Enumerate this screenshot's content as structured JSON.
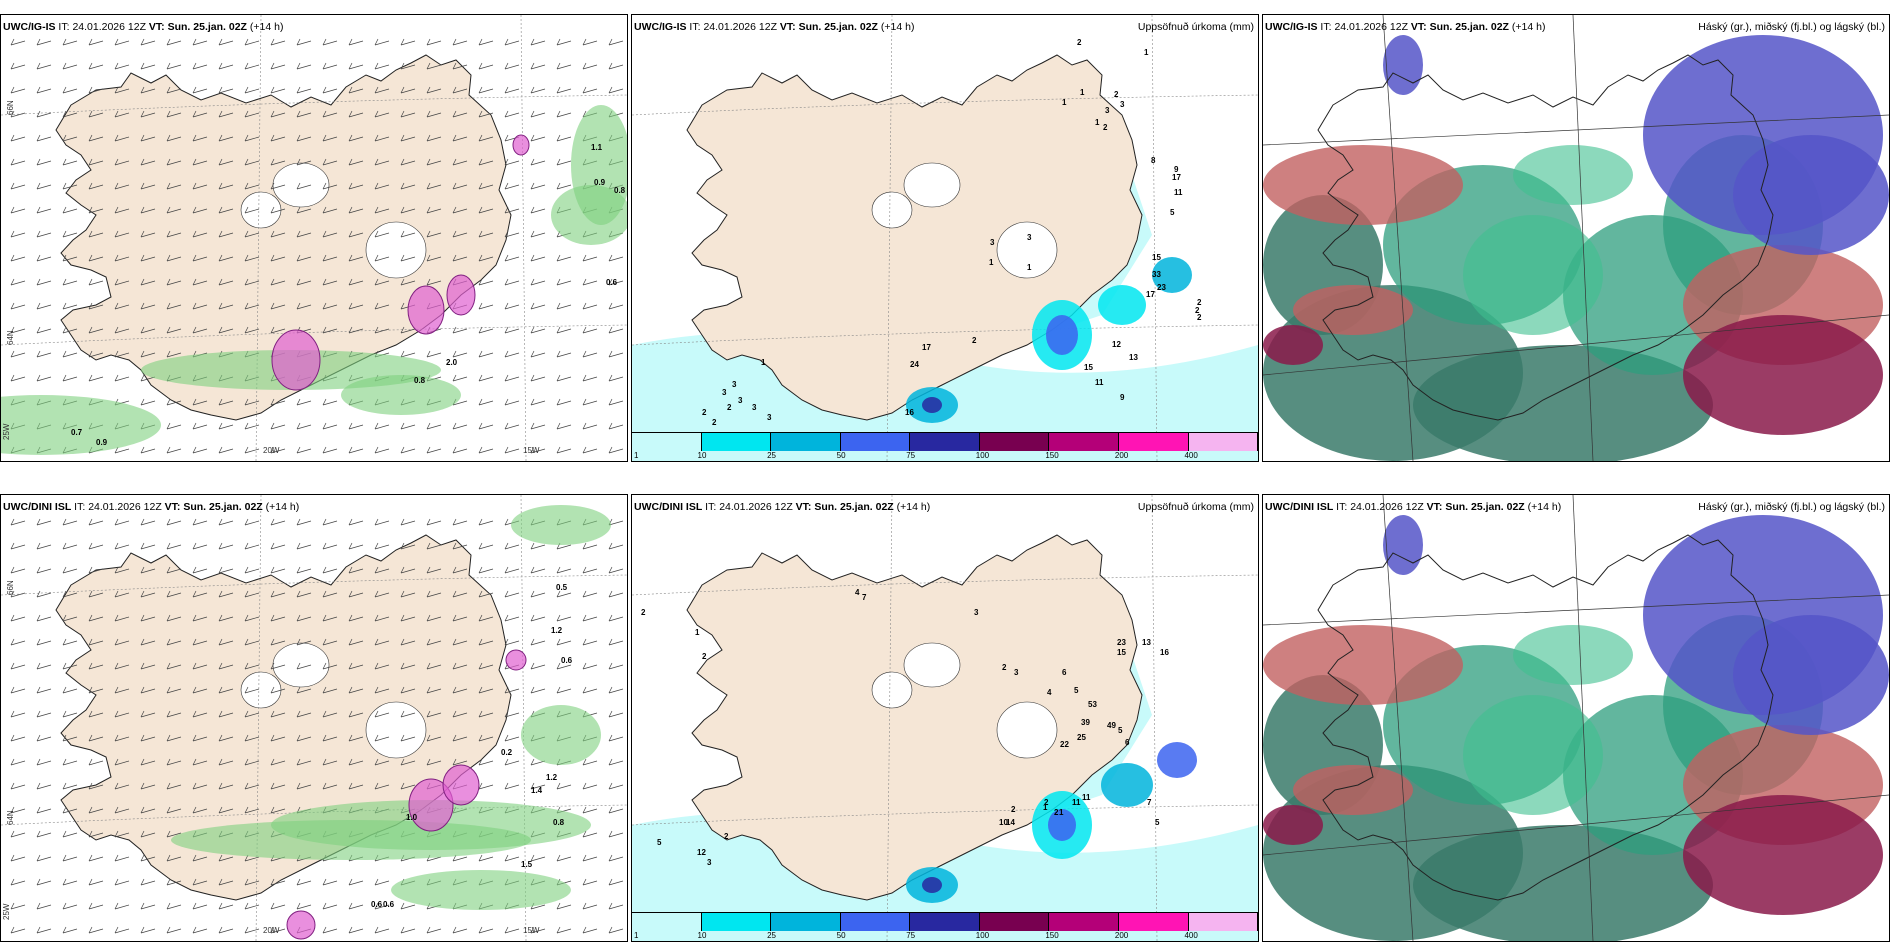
{
  "panels": [
    {
      "id": "p1",
      "model": "UWC/IG-IS",
      "it_label": "IT:",
      "it": "24.01.2026 12Z",
      "vt_label": "VT:",
      "vt": "Sun. 25.jan. 02Z",
      "lead": "(+14 h)",
      "right_title": ""
    },
    {
      "id": "p2",
      "model": "UWC/IG-IS",
      "it_label": "IT:",
      "it": "24.01.2026 12Z",
      "vt_label": "VT:",
      "vt": "Sun. 25.jan. 02Z",
      "lead": "(+14 h)",
      "right_title": "Uppsöfnuð úrkoma (mm)"
    },
    {
      "id": "p3",
      "model": "UWC/IG-IS",
      "it_label": "IT:",
      "it": "24.01.2026 12Z",
      "vt_label": "VT:",
      "vt": "Sun. 25.jan. 02Z",
      "lead": "(+14 h)",
      "right_title": "Háský (gr.), miðský (fj.bl.) og lágský (bl.)"
    },
    {
      "id": "p4",
      "model": "UWC/DINI ISL",
      "it_label": "IT:",
      "it": "24.01.2026 12Z",
      "vt_label": "VT:",
      "vt": "Sun. 25.jan. 02Z",
      "lead": "(+14 h)",
      "right_title": ""
    },
    {
      "id": "p5",
      "model": "UWC/DINI ISL",
      "it_label": "IT:",
      "it": "24.01.2026 12Z",
      "vt_label": "VT:",
      "vt": "Sun. 25.jan. 02Z",
      "lead": "(+14 h)",
      "right_title": "Uppsöfnuð úrkoma (mm)"
    },
    {
      "id": "p6",
      "model": "UWC/DINI ISL",
      "it_label": "IT:",
      "it": "24.01.2026 12Z",
      "vt_label": "VT:",
      "vt": "Sun. 25.jan. 02Z",
      "lead": "(+14 h)",
      "right_title": "Háský (gr.), miðský (fj.bl.) og lágský (bl.)"
    }
  ],
  "axis_labels": {
    "n66": "66N",
    "n64": "64N",
    "w20": "20W",
    "w15": "15W",
    "w25": "25W"
  },
  "colorbar": {
    "ticks": [
      "1",
      "10",
      "25",
      "50",
      "75",
      "100",
      "150",
      "200",
      "400"
    ],
    "colors": [
      "#c8fafa",
      "#00e6f0",
      "#00b4dc",
      "#3c64f0",
      "#2828a0",
      "#780050",
      "#b40078",
      "#ff14b4",
      "#f5b4f0"
    ]
  },
  "precip_labels_top": [
    {
      "t": "1"
    },
    {
      "t": "2"
    },
    {
      "t": "1"
    },
    {
      "t": "3"
    },
    {
      "t": "3"
    },
    {
      "t": "1"
    },
    {
      "t": "2"
    },
    {
      "t": "2"
    },
    {
      "t": "1"
    },
    {
      "t": "8"
    },
    {
      "t": "9"
    },
    {
      "t": "17"
    },
    {
      "t": "11"
    },
    {
      "t": "5"
    },
    {
      "t": "2"
    },
    {
      "t": "3"
    },
    {
      "t": "1"
    },
    {
      "t": "1"
    },
    {
      "t": "3"
    },
    {
      "t": "15"
    },
    {
      "t": "33"
    },
    {
      "t": "23"
    },
    {
      "t": "17"
    },
    {
      "t": "2"
    },
    {
      "t": "2"
    },
    {
      "t": "13"
    },
    {
      "t": "12"
    },
    {
      "t": "15"
    },
    {
      "t": "11"
    },
    {
      "t": "9"
    },
    {
      "t": "17"
    },
    {
      "t": "24"
    },
    {
      "t": "2"
    },
    {
      "t": "1"
    },
    {
      "t": "16"
    },
    {
      "t": "3"
    },
    {
      "t": "3"
    },
    {
      "t": "3"
    },
    {
      "t": "3"
    },
    {
      "t": "2"
    },
    {
      "t": "2"
    },
    {
      "t": "2"
    },
    {
      "t": "3"
    }
  ],
  "precip_labels_bottom": [
    {
      "t": "2"
    },
    {
      "t": "1"
    },
    {
      "t": "2"
    },
    {
      "t": "4"
    },
    {
      "t": "7"
    },
    {
      "t": "3"
    },
    {
      "t": "23"
    },
    {
      "t": "13"
    },
    {
      "t": "15"
    },
    {
      "t": "16"
    },
    {
      "t": "2"
    },
    {
      "t": "3"
    },
    {
      "t": "4"
    },
    {
      "t": "6"
    },
    {
      "t": "5"
    },
    {
      "t": "53"
    },
    {
      "t": "39"
    },
    {
      "t": "25"
    },
    {
      "t": "22"
    },
    {
      "t": "49"
    },
    {
      "t": "5"
    },
    {
      "t": "6"
    },
    {
      "t": "7"
    },
    {
      "t": "5"
    },
    {
      "t": "11"
    },
    {
      "t": "11"
    },
    {
      "t": "1"
    },
    {
      "t": "10"
    },
    {
      "t": "2"
    },
    {
      "t": "14"
    },
    {
      "t": "1"
    },
    {
      "t": "2"
    },
    {
      "t": "2"
    },
    {
      "t": "5"
    },
    {
      "t": "12"
    },
    {
      "t": "3"
    },
    {
      "t": "2"
    }
  ],
  "wind_labels_top": [
    {
      "t": "1.1"
    },
    {
      "t": "0.9"
    },
    {
      "t": "0.8"
    },
    {
      "t": "0.6"
    },
    {
      "t": "0.7"
    },
    {
      "t": "0.9"
    },
    {
      "t": "2.0"
    },
    {
      "t": "0.8"
    }
  ],
  "wind_labels_bottom": [
    {
      "t": "0.5"
    },
    {
      "t": "1.2"
    },
    {
      "t": "0.6"
    },
    {
      "t": "0.8"
    },
    {
      "t": "1.5"
    },
    {
      "t": "0.6"
    },
    {
      "t": "0.6"
    },
    {
      "t": "1.4"
    },
    {
      "t": "1.0"
    },
    {
      "t": "1.2"
    },
    {
      "t": "0.2"
    }
  ]
}
